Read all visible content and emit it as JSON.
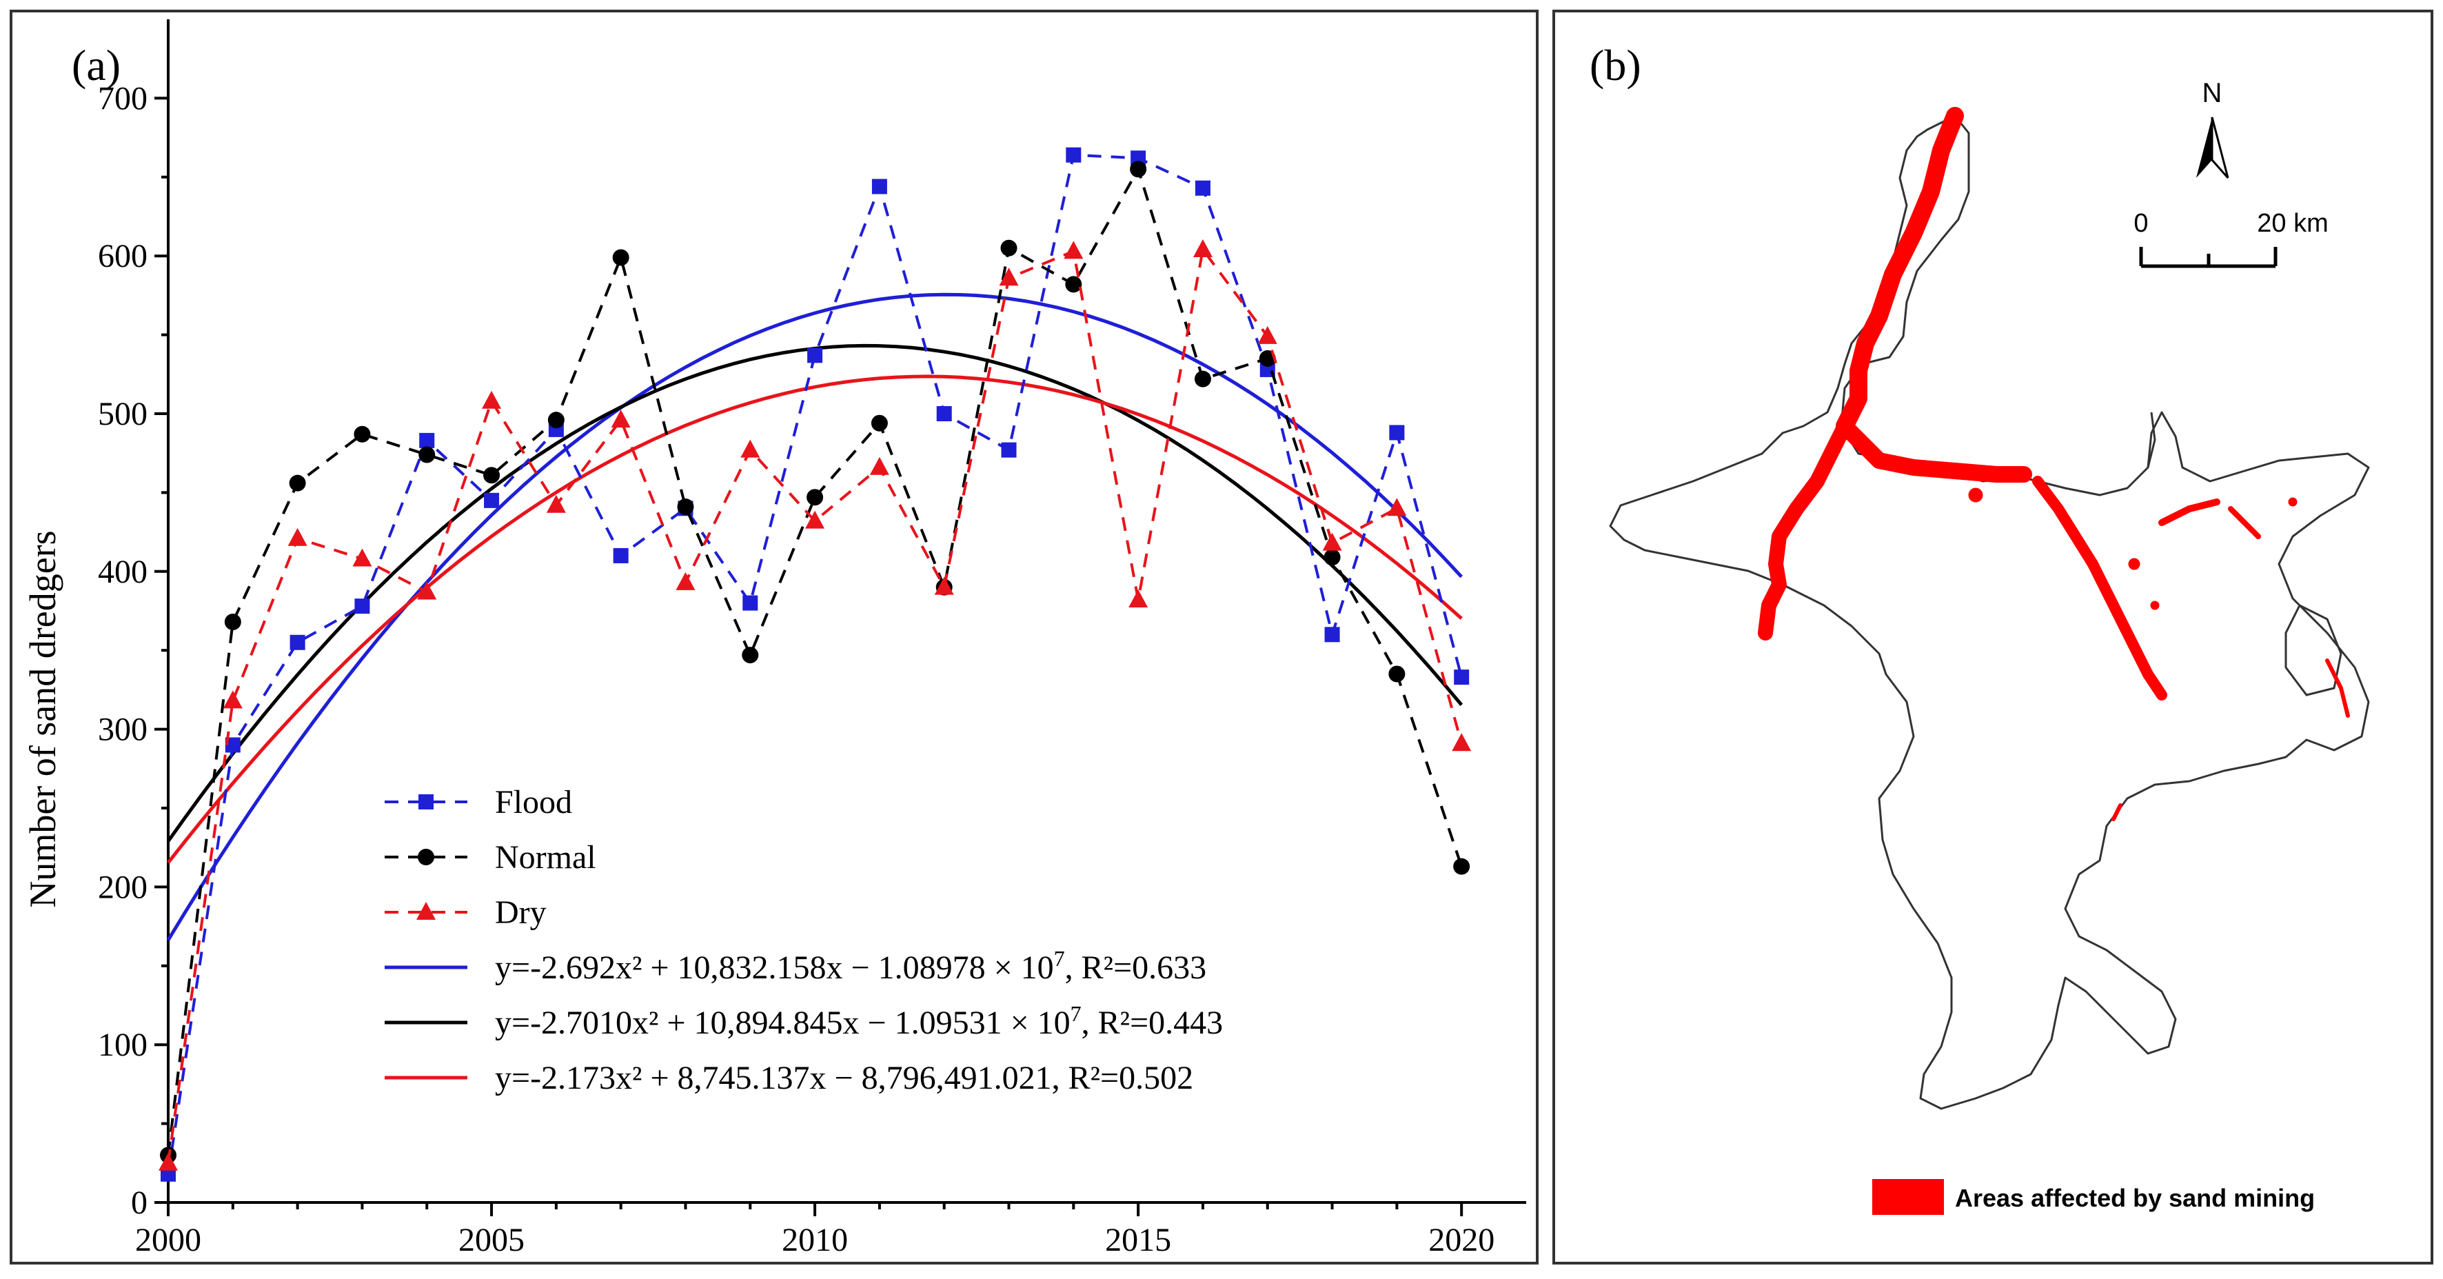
{
  "panel_a": {
    "tag": "(a)",
    "chart_data": {
      "type": "line",
      "title": "",
      "xlabel": "",
      "ylabel": "Number of sand dredgers",
      "xlim": [
        2000,
        2021
      ],
      "ylim": [
        0,
        750
      ],
      "x_ticks": [
        2000,
        2005,
        2010,
        2015,
        2020
      ],
      "y_ticks": [
        0,
        100,
        200,
        300,
        400,
        500,
        600,
        700
      ],
      "x": [
        2000,
        2001,
        2002,
        2003,
        2004,
        2005,
        2006,
        2007,
        2008,
        2009,
        2010,
        2011,
        2012,
        2013,
        2014,
        2015,
        2016,
        2017,
        2018,
        2019,
        2020
      ],
      "series": [
        {
          "name": "Flood",
          "color": "#1f1fd6",
          "marker": "square",
          "style": "dashed",
          "values": [
            18,
            290,
            355,
            378,
            483,
            445,
            490,
            410,
            440,
            380,
            537,
            644,
            500,
            477,
            664,
            662,
            643,
            528,
            360,
            488,
            333
          ]
        },
        {
          "name": "Normal",
          "color": "#000000",
          "marker": "circle",
          "style": "dashed",
          "values": [
            30,
            368,
            456,
            487,
            474,
            461,
            496,
            599,
            441,
            347,
            447,
            494,
            390,
            605,
            582,
            655,
            522,
            535,
            409,
            335,
            213
          ]
        },
        {
          "name": "Dry",
          "color": "#e8141b",
          "marker": "triangle",
          "style": "dashed",
          "values": [
            25,
            318,
            421,
            408,
            387,
            508,
            442,
            496,
            393,
            477,
            432,
            466,
            390,
            586,
            603,
            382,
            604,
            549,
            418,
            440,
            291
          ]
        }
      ],
      "fits": [
        {
          "name": "Flood fit",
          "color": "#1f1fd6",
          "equation": "y=-2.692x² + 10,832.158x − 1.08978 × 10⁷, R²=0.633",
          "eq_parts": {
            "pre": "y=-2.692x² + 10,832.158x − 1.08978 × 10",
            "exp": "7",
            "post": ", R²=0.633"
          },
          "points": [
            [
              2000,
              160
            ],
            [
              2005,
              450
            ],
            [
              2012.3,
              564
            ],
            [
              2020,
              400
            ]
          ]
        },
        {
          "name": "Normal fit",
          "color": "#000000",
          "equation": "y=-2.7010x² + 10,894.845x − 1.09531 × 10⁷, R²=0.443",
          "eq_parts": {
            "pre": "y=-2.7010x² + 10,894.845x − 1.09531 × 10",
            "exp": "7",
            "post": ", R²=0.443"
          },
          "points": [
            [
              2000,
              230
            ],
            [
              2005,
              450
            ],
            [
              2010.8,
              545
            ],
            [
              2020,
              315
            ]
          ]
        },
        {
          "name": "Dry fit",
          "color": "#e8141b",
          "equation": "y=-2.173x² + 8,745.137x − 8,796,491.021, R²=0.502",
          "eq_parts": {
            "pre": "y=-2.173x² + 8,745.137x − 8,796,491.021",
            "exp": "",
            "post": ", R²=0.502"
          },
          "points": [
            [
              2000,
              212
            ],
            [
              2005,
              430
            ],
            [
              2012.2,
              517
            ],
            [
              2020,
              372
            ]
          ]
        }
      ],
      "legend_position": "lower-left"
    }
  },
  "panel_b": {
    "tag": "(b)",
    "north_label": "N",
    "scale_labels": [
      "0",
      "20 km"
    ],
    "legend_label": "Areas affected by sand mining",
    "colors": {
      "mining": "#ff0000",
      "outline": "#333333"
    }
  }
}
